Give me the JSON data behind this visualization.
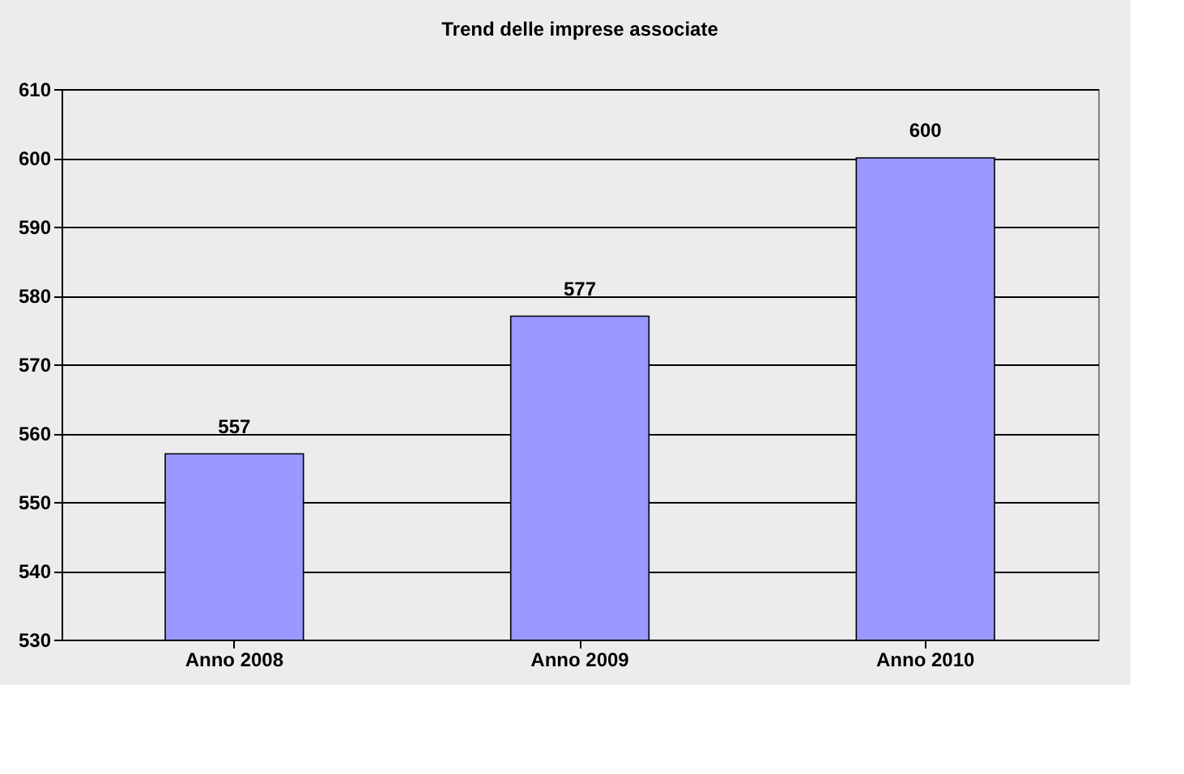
{
  "chart_data": {
    "type": "bar",
    "title": "Trend delle imprese associate",
    "categories": [
      "Anno 2008",
      "Anno 2009",
      "Anno 2010"
    ],
    "values": [
      557,
      577,
      600
    ],
    "color": "#9999ff",
    "ylim": [
      530,
      610
    ],
    "yticks": [
      530,
      540,
      550,
      560,
      570,
      580,
      590,
      600,
      610
    ],
    "grid": "y",
    "data_labels": true
  }
}
